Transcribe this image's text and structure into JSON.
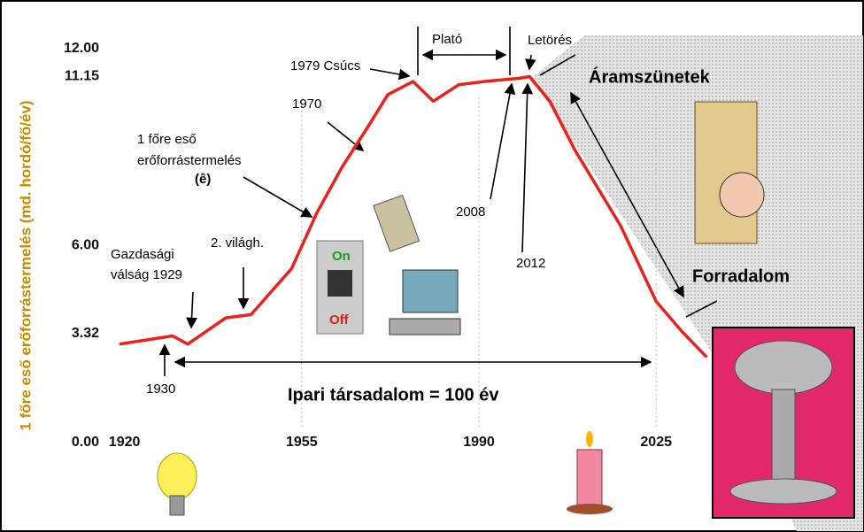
{
  "chart_data": {
    "type": "line",
    "ylabel": "1 főre eső erőforrástermelés (md. hordó/fő/év)",
    "x": [
      1919,
      1929.5,
      1932.5,
      1940,
      1945,
      1953,
      1958,
      1963,
      1968,
      1972,
      1977,
      1981,
      1986,
      1991,
      1998,
      2000,
      2004,
      2009,
      2018,
      2025,
      2030,
      2035
    ],
    "series": [
      {
        "color": "#e8231e",
        "values": [
          3.0,
          3.25,
          3.0,
          3.8,
          3.9,
          5.3,
          7.0,
          8.4,
          9.6,
          10.6,
          11.0,
          10.4,
          10.9,
          11.0,
          11.1,
          11.15,
          10.4,
          8.9,
          6.6,
          4.3,
          3.4,
          2.6
        ]
      }
    ],
    "xlim": [
      1915,
      2065
    ],
    "ylim": [
      0,
      12
    ],
    "xticks": [
      1920,
      1955,
      1990,
      2025
    ],
    "yticks": [
      {
        "value": 0,
        "label": "0.00"
      },
      {
        "value": 3.32,
        "label": "3.32"
      },
      {
        "value": 6,
        "label": "6.00"
      },
      {
        "value": 11.15,
        "label": "11.15"
      },
      {
        "value": 12,
        "label": "12.00"
      }
    ],
    "annotations": [
      "Plató",
      "Letörés",
      "1979 Csúcs",
      "Áramszünetek",
      "1970",
      "1 főre eső",
      "erőforrástermelés",
      "(ê)",
      "2008",
      "2012",
      "Gazdasági",
      "válság 1929",
      "2. világh.",
      "Forradalom",
      "1930",
      "Ipari társadalom = 100 év",
      "On",
      "Off"
    ]
  }
}
